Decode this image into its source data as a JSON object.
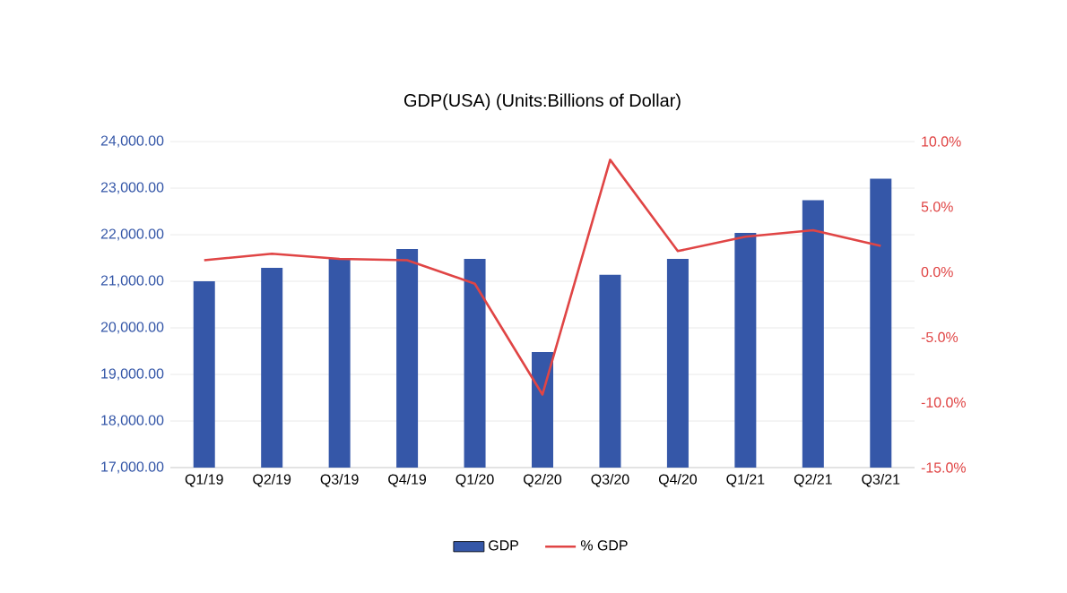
{
  "chart_data": {
    "type": "bar",
    "title": "GDP(USA) (Units:Billions of Dollar)",
    "categories": [
      "Q1/19",
      "Q2/19",
      "Q3/19",
      "Q4/19",
      "Q1/20",
      "Q2/20",
      "Q3/20",
      "Q4/20",
      "Q1/21",
      "Q2/21",
      "Q3/21"
    ],
    "series": [
      {
        "name": "GDP",
        "color": "#3557a8",
        "values": [
          21000,
          21290,
          21500,
          21690,
          21480,
          19480,
          21140,
          21480,
          22040,
          22740,
          23200
        ]
      },
      {
        "name": "% GDP",
        "type": "line",
        "axis": "y2",
        "color": "#e04545",
        "values": [
          0.9,
          1.4,
          1.0,
          0.9,
          -0.9,
          -9.4,
          8.6,
          1.6,
          2.7,
          3.2,
          2.0
        ]
      }
    ],
    "ylim": [
      17000,
      24000
    ],
    "yticks": [
      {
        "value": 17000,
        "label": "17,000.00"
      },
      {
        "value": 18000,
        "label": "18,000.00"
      },
      {
        "value": 19000,
        "label": "19,000.00"
      },
      {
        "value": 20000,
        "label": "20,000.00"
      },
      {
        "value": 21000,
        "label": "21,000.00"
      },
      {
        "value": 22000,
        "label": "22,000.00"
      },
      {
        "value": 23000,
        "label": "23,000.00"
      },
      {
        "value": 24000,
        "label": "24,000.00"
      }
    ],
    "y2lim": [
      -15,
      10
    ],
    "y2ticks": [
      {
        "value": -15,
        "label": "-15.0%"
      },
      {
        "value": -10,
        "label": "-10.0%"
      },
      {
        "value": -5,
        "label": "-5.0%"
      },
      {
        "value": 0,
        "label": "0.0%"
      },
      {
        "value": 5,
        "label": "5.0%"
      },
      {
        "value": 10,
        "label": "10.0%"
      }
    ],
    "grid": "y",
    "legend": "bottom",
    "marker": "none"
  }
}
